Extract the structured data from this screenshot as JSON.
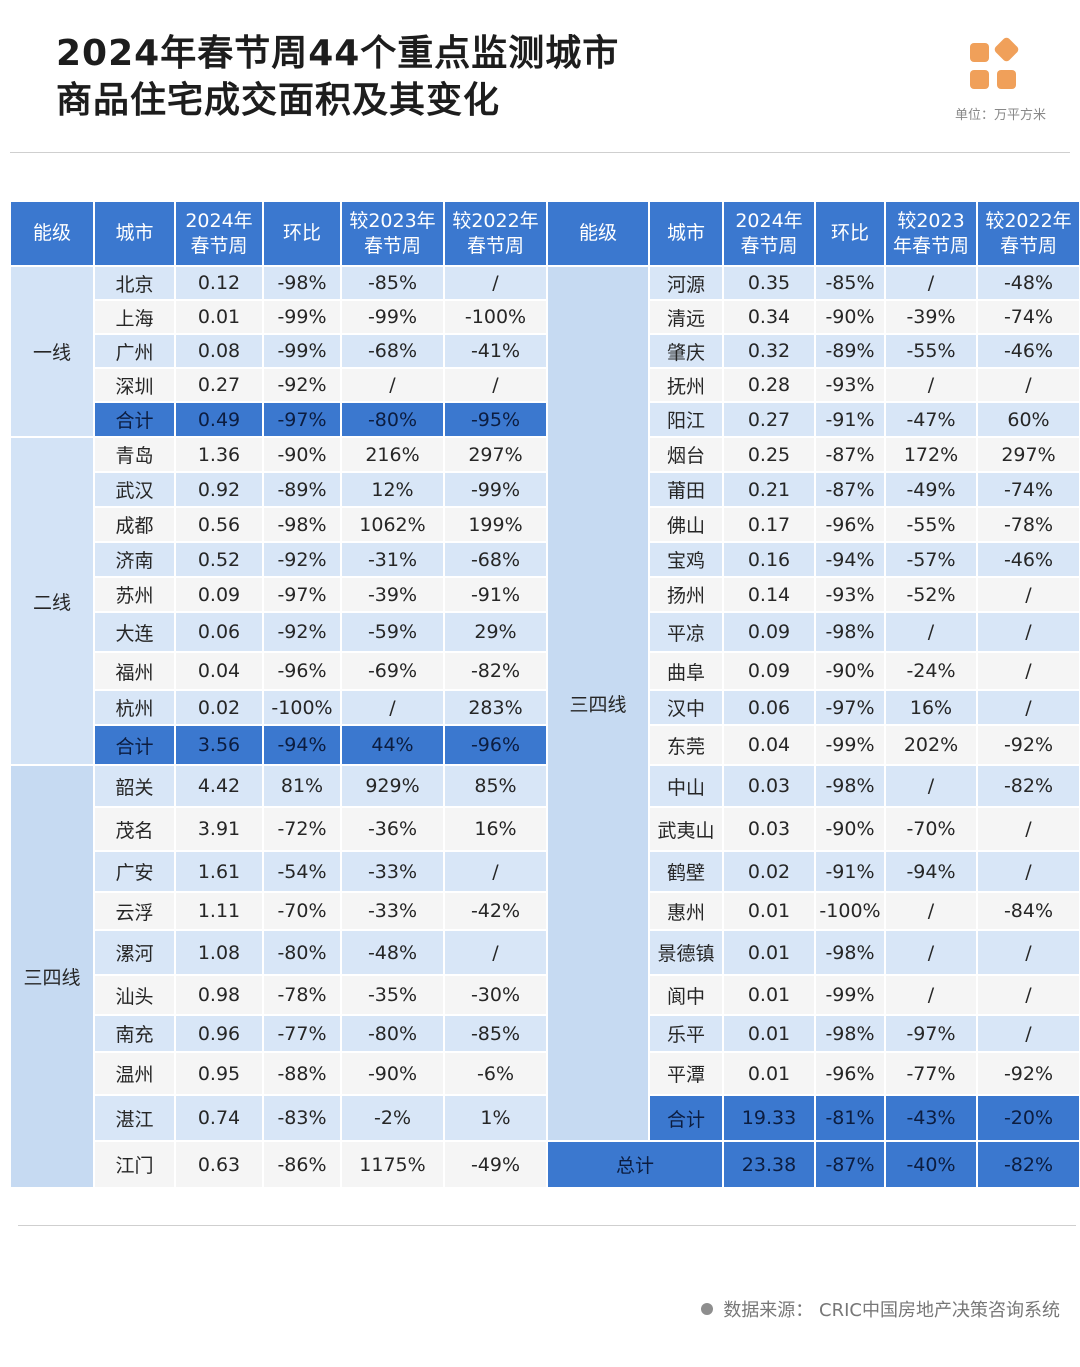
{
  "title": {
    "line1": "2024年春节周44个重点监测城市",
    "line2": "商品住宅成交面积及其变化"
  },
  "unit": "单位：万平方米",
  "logo_icon": "brand-squares-icon",
  "colors": {
    "header_blue": "#3b78cf",
    "row_light_blue": "#d8e6f7",
    "row_gray": "#f5f5f5",
    "logo_orange": "#f0a05a"
  },
  "headers": [
    "能级",
    "城市",
    "2024年\n春节周",
    "环比",
    "较2023年\n春节周",
    "较2022年\n春节周",
    "能级",
    "城市",
    "2024年\n春节周",
    "环比",
    "较2023\n年春节周",
    "较2022年\n春节周"
  ],
  "left_groups": [
    {
      "tier": "一线",
      "rows": [
        [
          "北京",
          "0.12",
          "-98%",
          "-85%",
          "/"
        ],
        [
          "上海",
          "0.01",
          "-99%",
          "-99%",
          "-100%"
        ],
        [
          "广州",
          "0.08",
          "-99%",
          "-68%",
          "-41%"
        ],
        [
          "深圳",
          "0.27",
          "-92%",
          "/",
          "/"
        ]
      ],
      "total": [
        "合计",
        "0.49",
        "-97%",
        "-80%",
        "-95%"
      ]
    },
    {
      "tier": "二线",
      "rows": [
        [
          "青岛",
          "1.36",
          "-90%",
          "216%",
          "297%"
        ],
        [
          "武汉",
          "0.92",
          "-89%",
          "12%",
          "-99%"
        ],
        [
          "成都",
          "0.56",
          "-98%",
          "1062%",
          "199%"
        ],
        [
          "济南",
          "0.52",
          "-92%",
          "-31%",
          "-68%"
        ],
        [
          "苏州",
          "0.09",
          "-97%",
          "-39%",
          "-91%"
        ],
        [
          "大连",
          "0.06",
          "-92%",
          "-59%",
          "29%"
        ],
        [
          "福州",
          "0.04",
          "-96%",
          "-69%",
          "-82%"
        ],
        [
          "杭州",
          "0.02",
          "-100%",
          "/",
          "283%"
        ]
      ],
      "total": [
        "合计",
        "3.56",
        "-94%",
        "44%",
        "-96%"
      ]
    },
    {
      "tier": "三四线",
      "rows": [
        [
          "韶关",
          "4.42",
          "81%",
          "929%",
          "85%"
        ],
        [
          "茂名",
          "3.91",
          "-72%",
          "-36%",
          "16%"
        ],
        [
          "广安",
          "1.61",
          "-54%",
          "-33%",
          "/"
        ],
        [
          "云浮",
          "1.11",
          "-70%",
          "-33%",
          "-42%"
        ],
        [
          "漯河",
          "1.08",
          "-80%",
          "-48%",
          "/"
        ],
        [
          "汕头",
          "0.98",
          "-78%",
          "-35%",
          "-30%"
        ],
        [
          "南充",
          "0.96",
          "-77%",
          "-80%",
          "-85%"
        ],
        [
          "温州",
          "0.95",
          "-88%",
          "-90%",
          "-6%"
        ],
        [
          "湛江",
          "0.74",
          "-83%",
          "-2%",
          "1%"
        ],
        [
          "江门",
          "0.63",
          "-86%",
          "1175%",
          "-49%"
        ]
      ]
    }
  ],
  "right_group": {
    "tier": "三四线",
    "rows": [
      [
        "河源",
        "0.35",
        "-85%",
        "/",
        "-48%"
      ],
      [
        "清远",
        "0.34",
        "-90%",
        "-39%",
        "-74%"
      ],
      [
        "肇庆",
        "0.32",
        "-89%",
        "-55%",
        "-46%"
      ],
      [
        "抚州",
        "0.28",
        "-93%",
        "/",
        "/"
      ],
      [
        "阳江",
        "0.27",
        "-91%",
        "-47%",
        "60%"
      ],
      [
        "烟台",
        "0.25",
        "-87%",
        "172%",
        "297%"
      ],
      [
        "莆田",
        "0.21",
        "-87%",
        "-49%",
        "-74%"
      ],
      [
        "佛山",
        "0.17",
        "-96%",
        "-55%",
        "-78%"
      ],
      [
        "宝鸡",
        "0.16",
        "-94%",
        "-57%",
        "-46%"
      ],
      [
        "扬州",
        "0.14",
        "-93%",
        "-52%",
        "/"
      ],
      [
        "平凉",
        "0.09",
        "-98%",
        "/",
        "/"
      ],
      [
        "曲阜",
        "0.09",
        "-90%",
        "-24%",
        "/"
      ],
      [
        "汉中",
        "0.06",
        "-97%",
        "16%",
        "/"
      ],
      [
        "东莞",
        "0.04",
        "-99%",
        "202%",
        "-92%"
      ],
      [
        "中山",
        "0.03",
        "-98%",
        "/",
        "-82%"
      ],
      [
        "武夷山",
        "0.03",
        "-90%",
        "-70%",
        "/"
      ],
      [
        "鹤壁",
        "0.02",
        "-91%",
        "-94%",
        "/"
      ],
      [
        "惠州",
        "0.01",
        "-100%",
        "/",
        "-84%"
      ],
      [
        "景德镇",
        "0.01",
        "-98%",
        "/",
        "/"
      ],
      [
        "阆中",
        "0.01",
        "-99%",
        "/",
        "/"
      ],
      [
        "乐平",
        "0.01",
        "-98%",
        "-97%",
        "/"
      ],
      [
        "平潭",
        "0.01",
        "-96%",
        "-77%",
        "-92%"
      ]
    ],
    "total": [
      "合计",
      "19.33",
      "-81%",
      "-43%",
      "-20%"
    ]
  },
  "grand_total": [
    "总计",
    "23.38",
    "-87%",
    "-40%",
    "-82%"
  ],
  "source": "数据来源： CRIC中国房地产决策咨询系统"
}
